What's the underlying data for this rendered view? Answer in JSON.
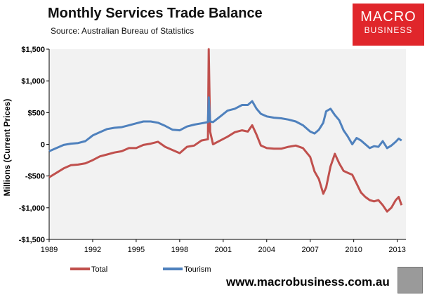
{
  "header": {
    "title": "Monthly Services Trade Balance",
    "source": "Source: Australian Bureau of Statistics"
  },
  "logo": {
    "line1": "MACRO",
    "line2": "BUSINESS"
  },
  "footer": {
    "website": "www.macrobusiness.com.au"
  },
  "colors": {
    "total": "#c0504d",
    "tourism": "#4f81bd",
    "plot_bg": "#f2f2f2",
    "logo_bg": "#e0262b"
  },
  "chart_data": {
    "type": "line",
    "title": "Monthly Services Trade Balance",
    "ylabel": "Millions (Current Prices)",
    "xlabel": "",
    "xlim": [
      1989,
      2013.6
    ],
    "ylim": [
      -1500,
      1500
    ],
    "grid": false,
    "legend": "bottom",
    "x_ticks": [
      "1989",
      "1992",
      "1995",
      "1998",
      "2001",
      "2004",
      "2007",
      "2010",
      "2013"
    ],
    "y_ticks": [
      "$1,500",
      "$1,000",
      "$500",
      "0",
      "-$500",
      "-$1,000",
      "-$1,500"
    ],
    "series": [
      {
        "name": "Total",
        "color": "#c0504d",
        "points": [
          [
            1989.0,
            -520
          ],
          [
            1989.5,
            -450
          ],
          [
            1990.0,
            -380
          ],
          [
            1990.5,
            -330
          ],
          [
            1991.0,
            -320
          ],
          [
            1991.5,
            -300
          ],
          [
            1992.0,
            -250
          ],
          [
            1992.5,
            -190
          ],
          [
            1993.0,
            -160
          ],
          [
            1993.5,
            -130
          ],
          [
            1994.0,
            -110
          ],
          [
            1994.5,
            -60
          ],
          [
            1995.0,
            -60
          ],
          [
            1995.5,
            -10
          ],
          [
            1996.0,
            10
          ],
          [
            1996.5,
            40
          ],
          [
            1997.0,
            -40
          ],
          [
            1997.5,
            -90
          ],
          [
            1998.0,
            -140
          ],
          [
            1998.5,
            -40
          ],
          [
            1999.0,
            -20
          ],
          [
            1999.5,
            60
          ],
          [
            1999.95,
            80
          ],
          [
            2000.0,
            1500
          ],
          [
            2000.1,
            200
          ],
          [
            2000.3,
            0
          ],
          [
            2000.8,
            60
          ],
          [
            2001.3,
            120
          ],
          [
            2001.8,
            190
          ],
          [
            2002.3,
            220
          ],
          [
            2002.7,
            200
          ],
          [
            2003.0,
            300
          ],
          [
            2003.3,
            150
          ],
          [
            2003.6,
            -20
          ],
          [
            2004.0,
            -60
          ],
          [
            2004.5,
            -70
          ],
          [
            2005.0,
            -70
          ],
          [
            2005.5,
            -40
          ],
          [
            2006.0,
            -20
          ],
          [
            2006.5,
            -60
          ],
          [
            2007.0,
            -200
          ],
          [
            2007.3,
            -430
          ],
          [
            2007.6,
            -550
          ],
          [
            2007.9,
            -780
          ],
          [
            2008.1,
            -680
          ],
          [
            2008.4,
            -350
          ],
          [
            2008.7,
            -150
          ],
          [
            2009.0,
            -300
          ],
          [
            2009.3,
            -420
          ],
          [
            2009.6,
            -450
          ],
          [
            2009.9,
            -480
          ],
          [
            2010.2,
            -620
          ],
          [
            2010.5,
            -760
          ],
          [
            2010.8,
            -830
          ],
          [
            2011.1,
            -880
          ],
          [
            2011.4,
            -900
          ],
          [
            2011.7,
            -880
          ],
          [
            2012.0,
            -960
          ],
          [
            2012.3,
            -1060
          ],
          [
            2012.6,
            -1000
          ],
          [
            2012.9,
            -880
          ],
          [
            2013.1,
            -830
          ],
          [
            2013.3,
            -960
          ]
        ]
      },
      {
        "name": "Tourism",
        "color": "#4f81bd",
        "points": [
          [
            1989.0,
            -110
          ],
          [
            1989.5,
            -60
          ],
          [
            1990.0,
            -10
          ],
          [
            1990.5,
            10
          ],
          [
            1991.0,
            20
          ],
          [
            1991.5,
            50
          ],
          [
            1992.0,
            140
          ],
          [
            1992.5,
            190
          ],
          [
            1993.0,
            240
          ],
          [
            1993.5,
            260
          ],
          [
            1994.0,
            270
          ],
          [
            1994.5,
            300
          ],
          [
            1995.0,
            330
          ],
          [
            1995.5,
            360
          ],
          [
            1996.0,
            360
          ],
          [
            1996.5,
            340
          ],
          [
            1997.0,
            290
          ],
          [
            1997.5,
            230
          ],
          [
            1998.0,
            220
          ],
          [
            1998.5,
            280
          ],
          [
            1999.0,
            310
          ],
          [
            1999.5,
            330
          ],
          [
            1999.95,
            350
          ],
          [
            2000.0,
            740
          ],
          [
            2000.1,
            360
          ],
          [
            2000.3,
            350
          ],
          [
            2000.8,
            440
          ],
          [
            2001.3,
            530
          ],
          [
            2001.8,
            560
          ],
          [
            2002.3,
            620
          ],
          [
            2002.7,
            620
          ],
          [
            2003.0,
            680
          ],
          [
            2003.3,
            560
          ],
          [
            2003.6,
            480
          ],
          [
            2004.0,
            440
          ],
          [
            2004.5,
            420
          ],
          [
            2005.0,
            410
          ],
          [
            2005.5,
            390
          ],
          [
            2006.0,
            360
          ],
          [
            2006.5,
            300
          ],
          [
            2007.0,
            200
          ],
          [
            2007.3,
            170
          ],
          [
            2007.6,
            230
          ],
          [
            2007.9,
            340
          ],
          [
            2008.1,
            520
          ],
          [
            2008.4,
            560
          ],
          [
            2008.7,
            460
          ],
          [
            2009.0,
            380
          ],
          [
            2009.3,
            220
          ],
          [
            2009.6,
            120
          ],
          [
            2009.9,
            0
          ],
          [
            2010.2,
            100
          ],
          [
            2010.5,
            60
          ],
          [
            2010.8,
            0
          ],
          [
            2011.1,
            -60
          ],
          [
            2011.4,
            -30
          ],
          [
            2011.7,
            -40
          ],
          [
            2012.0,
            50
          ],
          [
            2012.3,
            -60
          ],
          [
            2012.6,
            -20
          ],
          [
            2012.9,
            40
          ],
          [
            2013.1,
            90
          ],
          [
            2013.3,
            60
          ]
        ]
      }
    ]
  }
}
